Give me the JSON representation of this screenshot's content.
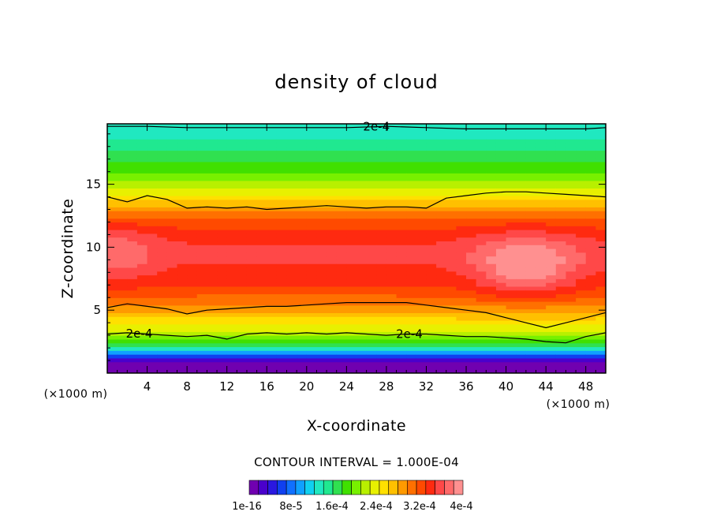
{
  "chart_data": {
    "type": "heatmap",
    "title": "density of cloud",
    "xlabel": "X-coordinate",
    "ylabel": "Z-coordinate",
    "x_unit": "(×1000 m)",
    "xlim": [
      0,
      50
    ],
    "ylim": [
      0,
      19.8
    ],
    "x_ticks": [
      4,
      8,
      12,
      16,
      20,
      24,
      28,
      32,
      36,
      40,
      44,
      48
    ],
    "y_ticks": [
      5,
      10,
      15
    ],
    "contour_interval_text": "CONTOUR INTERVAL = 1.000E-04",
    "contour_line_label": "2e-4",
    "colorbar": {
      "labels": [
        "1e-16",
        "8e-5",
        "1.6e-4",
        "2.4e-4",
        "3.2e-4",
        "4e-4"
      ],
      "colors": [
        "#7000b0",
        "#4a00cc",
        "#2a18e0",
        "#1040f0",
        "#1070ff",
        "#10a0ff",
        "#10d0f0",
        "#20e8c0",
        "#20e890",
        "#30e050",
        "#40e000",
        "#78f000",
        "#b8f000",
        "#e8f000",
        "#ffe000",
        "#ffc000",
        "#ff9a00",
        "#ff7000",
        "#ff4a00",
        "#ff2a10",
        "#ff4848",
        "#ff6a6a",
        "#ff9090"
      ]
    },
    "density_profile": {
      "z": [
        0.5,
        1.0,
        1.5,
        2.0,
        2.5,
        3.0,
        3.5,
        4.0,
        5.0,
        6.0,
        7.0,
        8.0,
        9.0,
        10.0,
        11.0,
        12.0,
        13.0,
        14.0,
        15.0,
        16.0,
        17.0,
        18.0,
        19.0,
        19.8
      ],
      "value": [
        0.0,
        2e-05,
        8e-05,
        0.00014,
        0.00018,
        0.00021,
        0.00023,
        0.00025,
        0.00028,
        0.00031,
        0.00033,
        0.00034,
        0.00035,
        0.00035,
        0.00034,
        0.00032,
        0.00029,
        0.00025,
        0.00022,
        0.00019,
        0.00017,
        0.00015,
        0.00013,
        0.00012
      ]
    },
    "density_max": {
      "x": 42,
      "z": 8.5,
      "value": 0.0004
    },
    "contours": [
      {
        "label": "2e-4",
        "x": [
          0,
          2,
          4,
          6,
          8,
          10,
          12,
          14,
          16,
          18,
          20,
          22,
          24,
          26,
          28,
          30,
          32,
          34,
          36,
          38,
          40,
          42,
          44,
          46,
          48,
          50
        ],
        "z": [
          3.1,
          3.2,
          3.1,
          3.0,
          2.9,
          3.0,
          2.7,
          3.1,
          3.2,
          3.1,
          3.2,
          3.1,
          3.2,
          3.1,
          3.0,
          3.1,
          3.1,
          3.0,
          2.9,
          2.9,
          2.8,
          2.7,
          2.5,
          2.4,
          2.9,
          3.2
        ]
      },
      {
        "label": "",
        "x": [
          0,
          2,
          4,
          6,
          8,
          10,
          12,
          14,
          16,
          18,
          20,
          22,
          24,
          26,
          28,
          30,
          32,
          34,
          36,
          38,
          40,
          42,
          44,
          46,
          48,
          50
        ],
        "z": [
          5.2,
          5.5,
          5.3,
          5.1,
          4.7,
          5.0,
          5.1,
          5.2,
          5.3,
          5.3,
          5.4,
          5.5,
          5.6,
          5.6,
          5.6,
          5.6,
          5.4,
          5.2,
          5.0,
          4.8,
          4.4,
          4.0,
          3.6,
          4.0,
          4.4,
          4.8
        ]
      },
      {
        "label": "",
        "x": [
          0,
          2,
          4,
          6,
          8,
          10,
          12,
          14,
          16,
          18,
          20,
          22,
          24,
          26,
          28,
          30,
          32,
          34,
          36,
          38,
          40,
          42,
          44,
          46,
          48,
          50
        ],
        "z": [
          14.0,
          13.6,
          14.1,
          13.8,
          13.1,
          13.2,
          13.1,
          13.2,
          13.0,
          13.1,
          13.2,
          13.3,
          13.2,
          13.1,
          13.2,
          13.2,
          13.1,
          13.9,
          14.1,
          14.3,
          14.4,
          14.4,
          14.3,
          14.2,
          14.1,
          14.0
        ]
      },
      {
        "label": "2e-4",
        "x": [
          0,
          4,
          8,
          12,
          16,
          20,
          24,
          28,
          32,
          36,
          40,
          44,
          48,
          50
        ],
        "z": [
          19.6,
          19.6,
          19.5,
          19.5,
          19.5,
          19.5,
          19.5,
          19.6,
          19.5,
          19.4,
          19.4,
          19.4,
          19.4,
          19.5
        ]
      }
    ]
  }
}
